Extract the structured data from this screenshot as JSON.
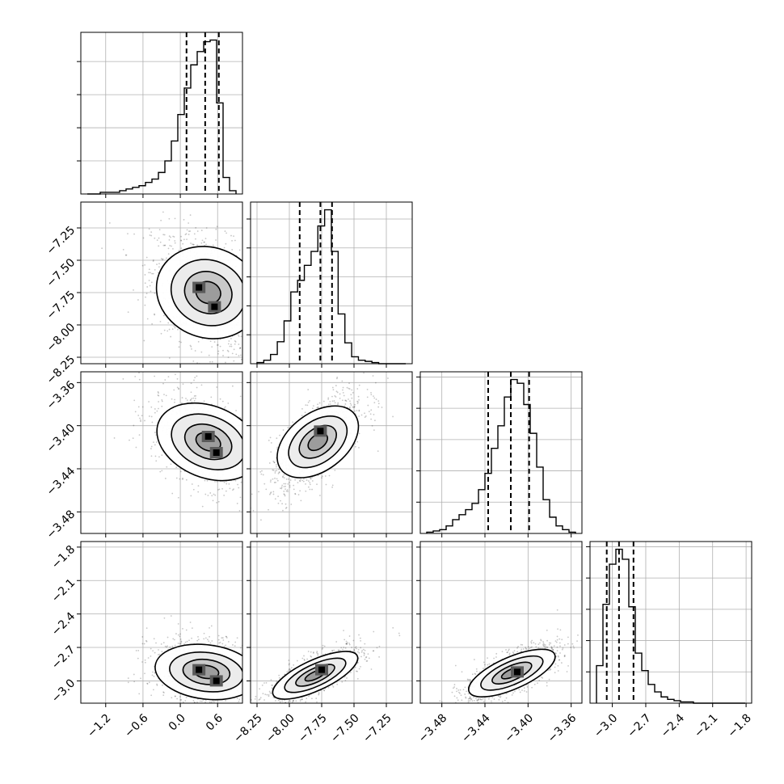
{
  "chart_data": {
    "type": "corner",
    "colors": {
      "line": "#000000",
      "grid": "#b0b0b0",
      "points": "#000000",
      "contour_fills": [
        "#ffffff",
        "#ebebeb",
        "#c7c7c7",
        "#9a9a9a",
        "#5a5a5a",
        "#000000"
      ]
    },
    "grid": true,
    "parameters": [
      {
        "index": 0,
        "range": [
          -1.6,
          1.0
        ],
        "ticks": [
          -1.2,
          -0.6,
          0.0,
          0.6
        ],
        "tick_labels": [
          "−1.2",
          "−0.6",
          "0.0",
          "0.6"
        ],
        "quantiles": [
          0.1,
          0.4,
          0.62
        ],
        "hist_counts": [
          0,
          0,
          1,
          1,
          1,
          2,
          3,
          4,
          5,
          7,
          9,
          13,
          20,
          32,
          48,
          64,
          78,
          86,
          92,
          93,
          55,
          10,
          2
        ]
      },
      {
        "index": 1,
        "range": [
          -8.3,
          -7.05
        ],
        "ticks": [
          -8.25,
          -8.0,
          -7.75,
          -7.5,
          -7.25
        ],
        "tick_labels": [
          "−8.25",
          "−8.00",
          "−7.75",
          "−7.50",
          "−7.25"
        ],
        "quantiles": [
          -7.92,
          -7.76,
          -7.67
        ],
        "hist_counts": [
          1,
          3,
          8,
          19,
          37,
          62,
          72,
          85,
          97,
          119,
          133,
          97,
          43,
          18,
          6,
          3,
          2,
          1,
          0,
          0,
          0,
          0
        ]
      },
      {
        "index": 2,
        "range": [
          -3.5,
          -3.35
        ],
        "ticks": [
          -3.48,
          -3.44,
          -3.4,
          -3.36
        ],
        "tick_labels": [
          "−3.48",
          "−3.44",
          "−3.40",
          "−3.36"
        ],
        "quantiles": [
          -3.437,
          -3.416,
          -3.399
        ],
        "hist_counts": [
          1,
          2,
          3,
          6,
          11,
          15,
          19,
          24,
          35,
          48,
          68,
          86,
          109,
          123,
          120,
          103,
          80,
          53,
          27,
          13,
          6,
          3,
          1
        ]
      },
      {
        "index": 3,
        "range": [
          -3.2,
          -1.75
        ],
        "ticks": [
          -3.0,
          -2.7,
          -2.4,
          -2.1,
          -1.8
        ],
        "tick_labels": [
          "−3.0",
          "−2.7",
          "−2.4",
          "−2.1",
          "−1.8"
        ],
        "quantiles": [
          -3.05,
          -2.94,
          -2.81
        ],
        "hist_counts": [
          30,
          79,
          111,
          123,
          115,
          77,
          40,
          26,
          15,
          9,
          5,
          3,
          2,
          1,
          1,
          0,
          0,
          0,
          0,
          0,
          0,
          0,
          0
        ]
      }
    ],
    "pairs": [
      {
        "x": 0,
        "y": 1,
        "center": [
          0.45,
          -7.75
        ],
        "spread": [
          0.35,
          0.18
        ],
        "corr": -0.35,
        "density_peaks": [
          [
            0.3,
            -7.71
          ],
          [
            0.55,
            -7.86
          ]
        ]
      },
      {
        "x": 0,
        "y": 2,
        "center": [
          0.45,
          -3.415
        ],
        "spread": [
          0.35,
          0.018
        ],
        "corr": -0.45,
        "density_peaks": [
          [
            0.45,
            -3.41
          ],
          [
            0.58,
            -3.425
          ]
        ]
      },
      {
        "x": 1,
        "y": 2,
        "center": [
          -7.78,
          -3.415
        ],
        "spread": [
          0.14,
          0.018
        ],
        "corr": 0.7,
        "density_peaks": [
          [
            -7.76,
            -3.405
          ]
        ]
      },
      {
        "x": 0,
        "y": 3,
        "center": [
          0.42,
          -2.92
        ],
        "spread": [
          0.35,
          0.12
        ],
        "corr": -0.2,
        "density_peaks": [
          [
            0.3,
            -2.9
          ],
          [
            0.58,
            -3.0
          ]
        ]
      },
      {
        "x": 1,
        "y": 3,
        "center": [
          -7.8,
          -2.95
        ],
        "spread": [
          0.14,
          0.1
        ],
        "corr": 0.75,
        "density_peaks": [
          [
            -7.75,
            -2.9
          ]
        ]
      },
      {
        "x": 2,
        "y": 3,
        "center": [
          -3.415,
          -2.93
        ],
        "spread": [
          0.017,
          0.1
        ],
        "corr": 0.72,
        "density_peaks": [
          [
            -3.41,
            -2.92
          ]
        ]
      }
    ]
  }
}
